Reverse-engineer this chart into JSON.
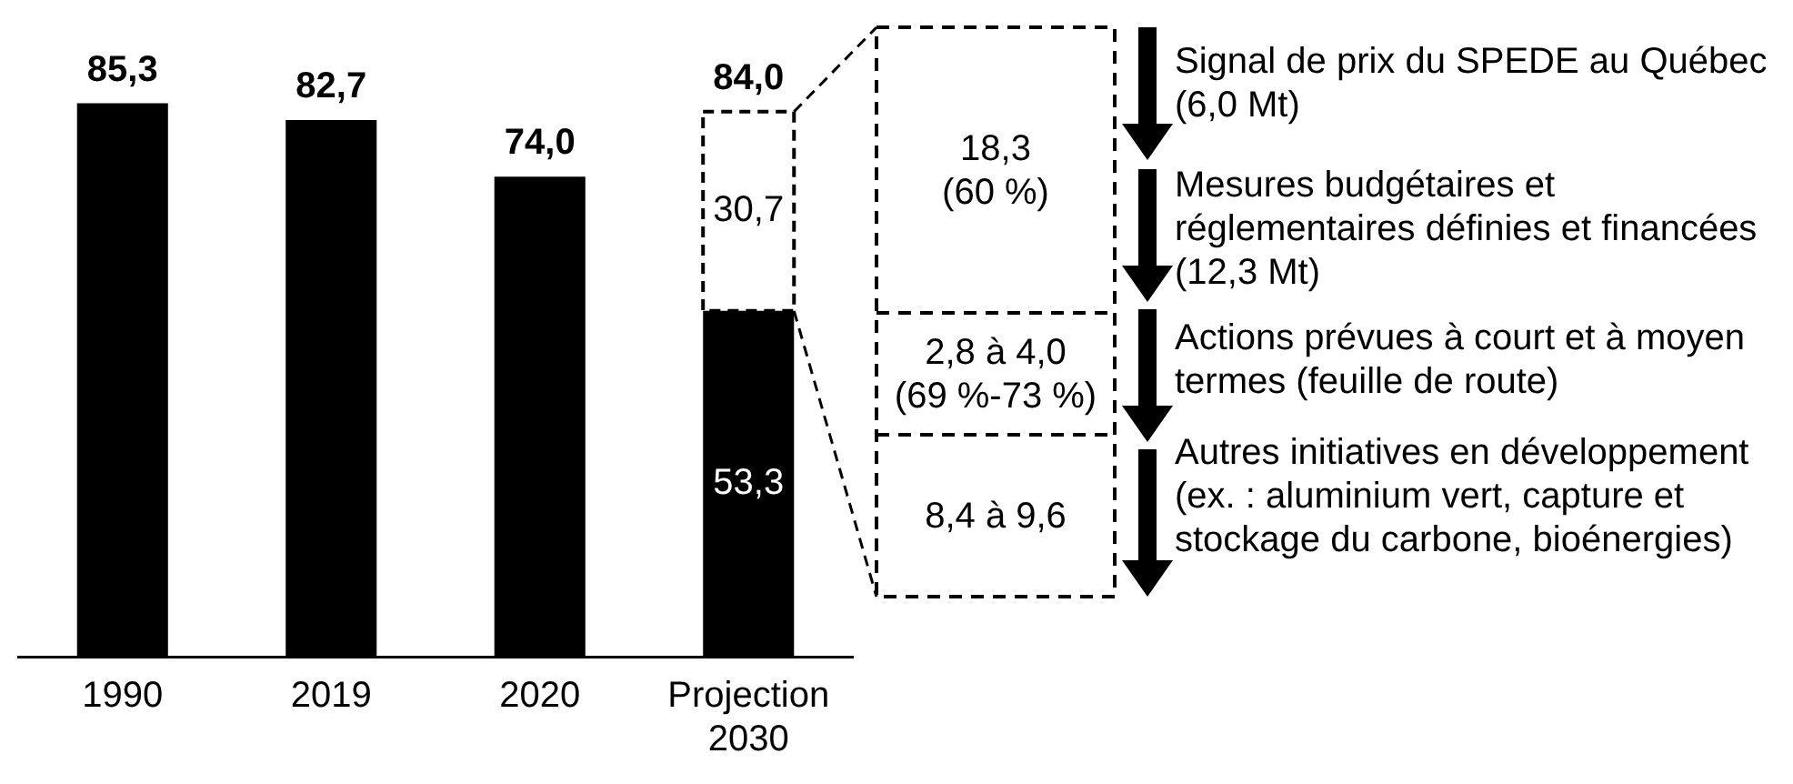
{
  "chart_data": {
    "type": "bar",
    "stacked": true,
    "categories": [
      "1990",
      "2019",
      "2020",
      "Projection 2030"
    ],
    "series": [
      {
        "color": "#000000",
        "values": [
          85.3,
          82.7,
          74.0,
          53.3
        ],
        "value_labels": [
          null,
          null,
          null,
          "53,3"
        ]
      },
      {
        "color": "#ffffff",
        "line_style": "dashed",
        "values": [
          null,
          null,
          null,
          30.7
        ],
        "value_labels": [
          null,
          null,
          null,
          "30,7"
        ]
      }
    ],
    "totals": [
      "85,3",
      "82,7",
      "74,0",
      "84,0"
    ],
    "tick_labels": "x",
    "grid": false,
    "legend": false,
    "annotations": [
      "18,3\n(60 %)",
      "2,8 à 4,0\n(69 %-73 %)",
      "8,4 à 9,6",
      "Signal de prix du SPEDE au Québec (6,0 Mt)",
      "Mesures budgétaires et réglementaires définies et financées (12,3 Mt)",
      "Actions prévues à court et à moyen termes (feuille de route)",
      "Autres initiatives en développement (ex. : aluminium vert, capture et stockage du carbone, bioénergies)"
    ]
  }
}
